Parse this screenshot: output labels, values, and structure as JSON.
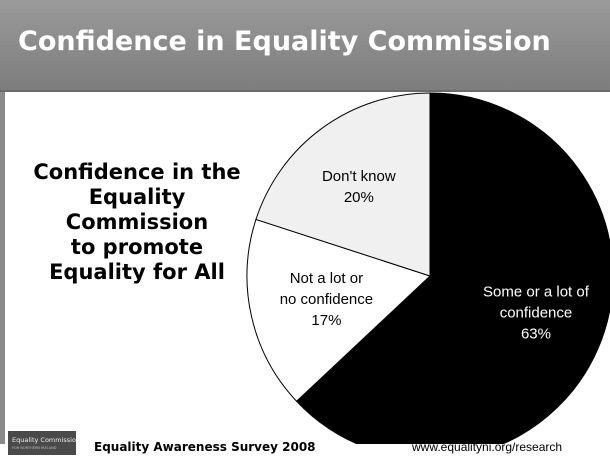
{
  "header": {
    "title": "Confidence in Equality Commission"
  },
  "side_text": {
    "lines": [
      "Confidence in the",
      "Equality",
      "Commission",
      "to promote",
      "Equality for All"
    ]
  },
  "footer": {
    "survey_label": "Equality Awareness Survey 2008",
    "url": "www.equalityni.org/research",
    "logo_text": "Equality Commission",
    "logo_subtext": "FOR NORTHERN IRELAND"
  },
  "chart_data": {
    "type": "pie",
    "title": "",
    "slices": [
      {
        "label_lines": [
          "Some or a lot of",
          "confidence"
        ],
        "value": 63,
        "value_label": "63%",
        "color": "#000000",
        "text_color": "#ffffff"
      },
      {
        "label_lines": [
          "Not a lot or",
          "no confidence"
        ],
        "value": 17,
        "value_label": "17%",
        "color": "#ffffff",
        "text_color": "#000000"
      },
      {
        "label_lines": [
          "Don't know"
        ],
        "value": 20,
        "value_label": "20%",
        "color": "#f0f0f0",
        "text_color": "#000000"
      }
    ],
    "start_angle_deg": 0,
    "direction": "clockwise"
  }
}
